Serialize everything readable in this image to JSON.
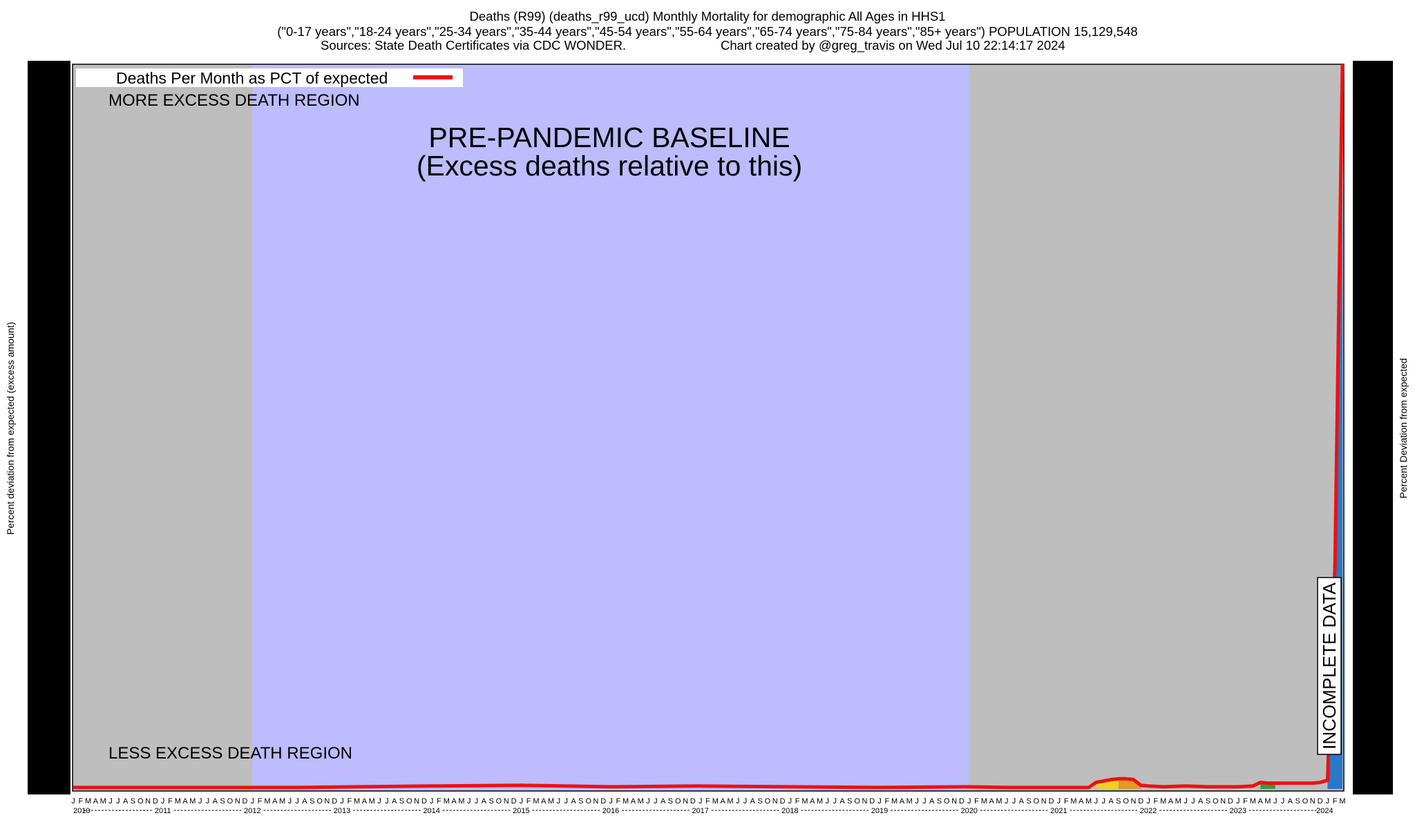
{
  "header": {
    "title_line1": "Deaths (R99) (deaths_r99_ucd) Monthly Mortality for demographic All Ages in HHS1",
    "title_line2": "(\"0-17 years\",\"18-24 years\",\"25-34 years\",\"35-44 years\",\"45-54 years\",\"55-64 years\",\"65-74 years\",\"75-84 years\",\"85+ years\") POPULATION 15,129,548",
    "sources": "Sources: State Death Certificates via CDC WONDER.",
    "credit": "Chart created by @greg_travis on Wed Jul 10 22:14:17 2024"
  },
  "chart_data": {
    "type": "line",
    "title": "Deaths (R99) (deaths_r99_ucd) Monthly Mortality for demographic All Ages in HHS1",
    "ylabel_left": "Percent deviation from expected (excess amount)",
    "ylabel_right": "Percent Deviation from expected",
    "legend": {
      "label": "Deaths Per Month as PCT of expected",
      "color": "#ee1111",
      "placement": "top-left"
    },
    "month_letters": [
      "J",
      "F",
      "M",
      "A",
      "M",
      "J",
      "J",
      "A",
      "S",
      "O",
      "N",
      "D"
    ],
    "years": [
      "2010",
      "2011",
      "2012",
      "2013",
      "2014",
      "2015",
      "2016",
      "2017",
      "2018",
      "2019",
      "2020",
      "2021",
      "2022",
      "2023",
      "2024"
    ],
    "x_start": "2010-01",
    "x_end": "2024-03",
    "regions": [
      {
        "label": "MORE EXCESS DEATH REGION",
        "position": "top"
      },
      {
        "label": "LESS EXCESS DEATH REGION",
        "position": "bottom"
      }
    ],
    "baseline": {
      "from": "2012-01",
      "to": "2020-01",
      "label_line1": "PRE-PANDEMIC BASELINE",
      "label_line2": "(Excess deaths relative to this)"
    },
    "incomplete_label": "INCOMPLETE DATA",
    "ylim": [
      0,
      100
    ],
    "series": [
      {
        "name": "Deaths Per Month as PCT of expected",
        "color": "#ee1111",
        "points": [
          [
            "2010-01",
            0.2
          ],
          [
            "2012-01",
            0.2
          ],
          [
            "2012-07",
            0.2
          ],
          [
            "2014-01",
            0.4
          ],
          [
            "2015-01",
            0.5
          ],
          [
            "2016-01",
            0.3
          ],
          [
            "2017-01",
            0.4
          ],
          [
            "2018-01",
            0.3
          ],
          [
            "2019-01",
            0.2
          ],
          [
            "2020-01",
            0.3
          ],
          [
            "2020-06",
            0.2
          ],
          [
            "2021-01",
            0.2
          ],
          [
            "2021-05",
            0.2
          ],
          [
            "2021-06",
            0.9
          ],
          [
            "2021-07",
            1.1
          ],
          [
            "2021-08",
            1.3
          ],
          [
            "2021-09",
            1.4
          ],
          [
            "2021-10",
            1.4
          ],
          [
            "2021-11",
            1.3
          ],
          [
            "2021-12",
            0.5
          ],
          [
            "2022-01",
            0.4
          ],
          [
            "2022-03",
            0.3
          ],
          [
            "2022-06",
            0.4
          ],
          [
            "2022-09",
            0.3
          ],
          [
            "2023-01",
            0.3
          ],
          [
            "2023-03",
            0.4
          ],
          [
            "2023-04",
            0.9
          ],
          [
            "2023-05",
            0.8
          ],
          [
            "2023-06",
            0.8
          ],
          [
            "2023-07",
            0.8
          ],
          [
            "2023-08",
            0.8
          ],
          [
            "2023-09",
            0.8
          ],
          [
            "2023-10",
            0.8
          ],
          [
            "2023-11",
            0.8
          ],
          [
            "2023-12",
            0.9
          ],
          [
            "2024-01",
            1.2
          ],
          [
            "2024-02",
            31
          ],
          [
            "2024-03",
            100
          ]
        ]
      }
    ],
    "fills": [
      {
        "color": "#f0d028",
        "from": "2021-06",
        "to": "2021-09"
      },
      {
        "color": "#e09a28",
        "from": "2021-09",
        "to": "2021-12"
      },
      {
        "color": "#3a9a3a",
        "from": "2023-04",
        "to": "2023-06"
      },
      {
        "color": "#2a78c8",
        "from": "2024-01",
        "to": "2024-03"
      }
    ],
    "colors": {
      "baseline_fill": "#bcbcff",
      "outside_fill": "#bebebe"
    }
  }
}
